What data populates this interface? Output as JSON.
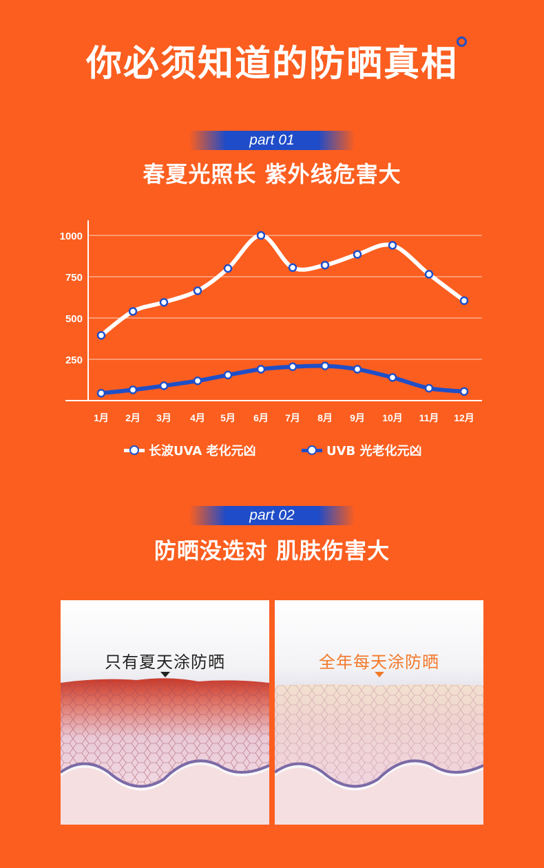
{
  "header": {
    "title": "你必须知道的防晒真相"
  },
  "part1": {
    "tag": "part 01",
    "title": "春夏光照长 紫外线危害大"
  },
  "part2": {
    "tag": "part 02",
    "title": "防晒没选对 肌肤伤害大"
  },
  "colors": {
    "background": "#fb5e1f",
    "uva_line": "#ffffff",
    "uvb_line": "#1f4fc8",
    "accent_orange": "#f2792a"
  },
  "chart_data": {
    "type": "line",
    "categories": [
      "1月",
      "2月",
      "3月",
      "4月",
      "5月",
      "6月",
      "7月",
      "8月",
      "9月",
      "10月",
      "11月",
      "12月"
    ],
    "yticks": [
      "1000",
      "750",
      "500",
      "250"
    ],
    "ylim": [
      0,
      1000
    ],
    "grid": true,
    "legend_position": "bottom",
    "series": [
      {
        "name": "长波UVA 老化元凶",
        "values": [
          395,
          540,
          595,
          665,
          800,
          1000,
          805,
          820,
          885,
          940,
          765,
          605
        ]
      },
      {
        "name": "UVB 光老化元凶",
        "values": [
          45,
          65,
          90,
          120,
          155,
          190,
          205,
          210,
          190,
          140,
          75,
          55
        ]
      }
    ]
  },
  "comparison": {
    "left_label": "只有夏天涂防晒",
    "right_label": "全年每天涂防晒"
  }
}
